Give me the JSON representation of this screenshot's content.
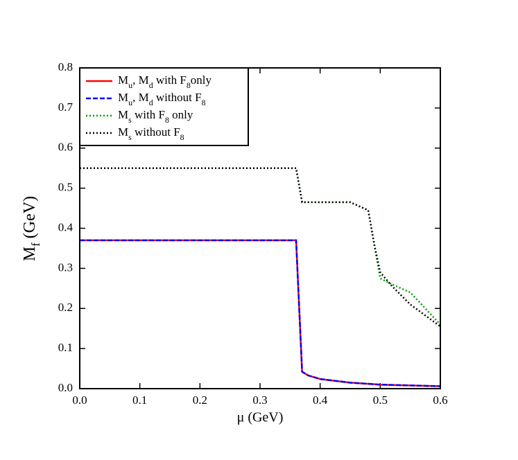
{
  "chart_data": {
    "type": "line",
    "x_label": "μ (GeV)",
    "y_label": "M_f (GeV)",
    "xlim": [
      0,
      0.6
    ],
    "ylim": [
      0,
      0.8
    ],
    "xticks": [
      {
        "value": 0,
        "label": "0.0"
      },
      0.1,
      0.2,
      0.3,
      0.4,
      0.5,
      0.6
    ],
    "yticks": [
      {
        "value": 0,
        "label": "0.0"
      },
      0.1,
      0.2,
      0.3,
      0.4,
      0.5,
      0.6,
      0.7,
      0.8
    ],
    "legend": "upper left",
    "series": [
      {
        "name": "M_u, M_d with F_8only",
        "color": "#ff0000",
        "dash": "solid",
        "x": [
          0,
          0.36,
          0.37,
          0.38,
          0.4,
          0.45,
          0.5,
          0.55,
          0.6
        ],
        "values": [
          0.37,
          0.37,
          0.042,
          0.033,
          0.024,
          0.015,
          0.01,
          0.008,
          0.006
        ]
      },
      {
        "name": "M_u, M_d without F_8",
        "color": "#0000ff",
        "dash": "dashed",
        "x": [
          0,
          0.36,
          0.37,
          0.38,
          0.4,
          0.45,
          0.5,
          0.55,
          0.6
        ],
        "values": [
          0.37,
          0.37,
          0.042,
          0.033,
          0.024,
          0.015,
          0.01,
          0.008,
          0.006
        ]
      },
      {
        "name": "M_s with F_8 only",
        "color": "#009900",
        "dash": "dotted",
        "x": [
          0,
          0.36,
          0.37,
          0.45,
          0.48,
          0.5,
          0.52,
          0.55,
          0.6
        ],
        "values": [
          0.55,
          0.55,
          0.465,
          0.465,
          0.445,
          0.275,
          0.26,
          0.24,
          0.16
        ]
      },
      {
        "name": "M_s without F_8",
        "color": "#000000",
        "dash": "dotted",
        "x": [
          0,
          0.36,
          0.37,
          0.45,
          0.48,
          0.49,
          0.5,
          0.52,
          0.55,
          0.6
        ],
        "values": [
          0.55,
          0.55,
          0.465,
          0.465,
          0.445,
          0.36,
          0.29,
          0.255,
          0.21,
          0.155
        ]
      }
    ]
  }
}
